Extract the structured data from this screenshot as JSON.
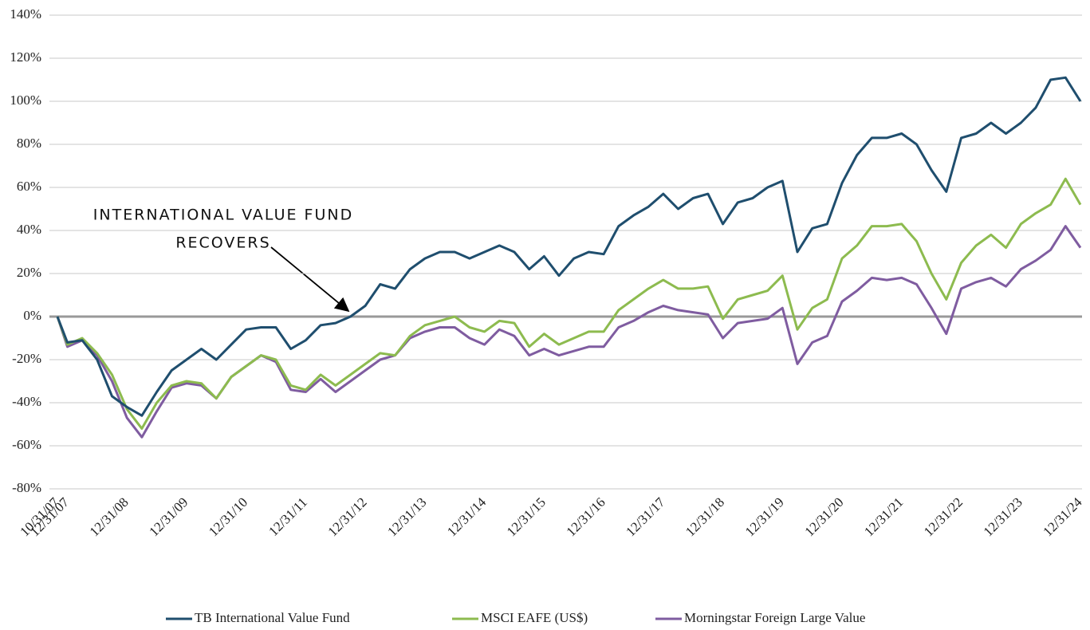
{
  "chart_data": {
    "type": "line",
    "annotations": [
      "INTERNATIONAL VALUE FUND",
      "RECOVERS"
    ],
    "categories": [
      "10/31/07",
      "12/31/07",
      null,
      null,
      null,
      "12/31/08",
      null,
      null,
      null,
      "12/31/09",
      null,
      null,
      null,
      "12/31/10",
      null,
      null,
      null,
      "12/31/11",
      null,
      null,
      null,
      "12/31/12",
      null,
      null,
      null,
      "12/31/13",
      null,
      null,
      null,
      "12/31/14",
      null,
      null,
      null,
      "12/31/15",
      null,
      null,
      null,
      "12/31/16",
      null,
      null,
      null,
      "12/31/17",
      null,
      null,
      null,
      "12/31/18",
      null,
      null,
      null,
      "12/31/19",
      null,
      null,
      null,
      "12/31/20",
      null,
      null,
      null,
      "12/31/21",
      null,
      null,
      null,
      "12/31/22",
      null,
      null,
      null,
      "12/31/23",
      null,
      null,
      null,
      "12/31/24"
    ],
    "series": [
      {
        "name": "TB International Value Fund",
        "color": "#1f4e6e",
        "values": [
          0,
          -12,
          -11,
          -20,
          -37,
          -42,
          -46,
          -35,
          -25,
          -20,
          -15,
          -20,
          -13,
          -6,
          -5,
          -5,
          -15,
          -11,
          -4,
          -3,
          0,
          5,
          15,
          13,
          22,
          27,
          30,
          30,
          27,
          30,
          33,
          30,
          22,
          28,
          19,
          27,
          30,
          29,
          42,
          47,
          51,
          57,
          50,
          55,
          57,
          43,
          53,
          55,
          60,
          63,
          30,
          41,
          43,
          62,
          75,
          83,
          83,
          85,
          80,
          68,
          58,
          83,
          85,
          90,
          85,
          90,
          97,
          110,
          111,
          100
        ]
      },
      {
        "name": "MSCI EAFE (US$)",
        "color": "#8dbb4f",
        "values": [
          0,
          -13,
          -10,
          -17,
          -27,
          -43,
          -52,
          -40,
          -32,
          -30,
          -31,
          -38,
          -28,
          -23,
          -18,
          -20,
          -32,
          -34,
          -27,
          -32,
          -27,
          -22,
          -17,
          -18,
          -9,
          -4,
          -2,
          0,
          -5,
          -7,
          -2,
          -3,
          -14,
          -8,
          -13,
          -10,
          -7,
          -7,
          3,
          8,
          13,
          17,
          13,
          13,
          14,
          -1,
          8,
          10,
          12,
          19,
          -6,
          4,
          8,
          27,
          33,
          42,
          42,
          43,
          35,
          20,
          8,
          25,
          33,
          38,
          32,
          43,
          48,
          52,
          64,
          52
        ]
      },
      {
        "name": "Morningstar Foreign Large Value",
        "color": "#7f5ca0",
        "values": [
          0,
          -14,
          -11,
          -18,
          -30,
          -47,
          -56,
          -44,
          -33,
          -31,
          -32,
          -38,
          -28,
          -23,
          -18,
          -21,
          -34,
          -35,
          -29,
          -35,
          -30,
          -25,
          -20,
          -18,
          -10,
          -7,
          -5,
          -5,
          -10,
          -13,
          -6,
          -9,
          -18,
          -15,
          -18,
          -16,
          -14,
          -14,
          -5,
          -2,
          2,
          5,
          3,
          2,
          1,
          -10,
          -3,
          -2,
          -1,
          4,
          -22,
          -12,
          -9,
          7,
          12,
          18,
          17,
          18,
          15,
          4,
          -8,
          13,
          16,
          18,
          14,
          22,
          26,
          31,
          42,
          32
        ]
      }
    ],
    "ylim": [
      -80,
      140
    ],
    "yticks": [
      {
        "value": -80,
        "label": "-80%"
      },
      {
        "value": -60,
        "label": "-60%"
      },
      {
        "value": -40,
        "label": "-40%"
      },
      {
        "value": -20,
        "label": "-20%"
      },
      {
        "value": 0,
        "label": "0%"
      },
      {
        "value": 20,
        "label": "20%"
      },
      {
        "value": 40,
        "label": "40%"
      },
      {
        "value": 60,
        "label": "60%"
      },
      {
        "value": 80,
        "label": "80%"
      },
      {
        "value": 100,
        "label": "100%"
      },
      {
        "value": 120,
        "label": "120%"
      },
      {
        "value": 140,
        "label": "140%"
      }
    ],
    "grid": true,
    "legend": "bottom"
  }
}
